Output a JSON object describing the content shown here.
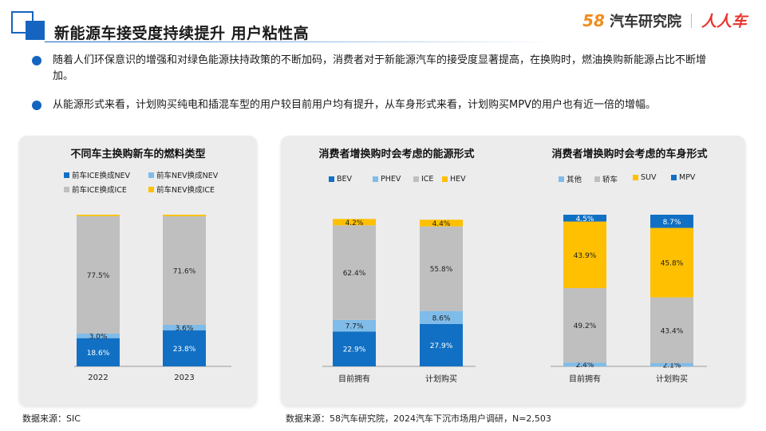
{
  "header": {
    "title": "新能源车接受度持续提升 用户粘性高",
    "brand_58": "58",
    "brand_58_text": "汽车研究院",
    "brand_rr": "人人车"
  },
  "bullets": [
    "随着人们环保意识的增强和对绿色能源扶持政策的不断加码，消费者对于新能源汽车的接受度显著提高，在换购时，燃油换购新能源占比不断增加。",
    "从能源形式来看，计划购买纯电和插混车型的用户较目前用户均有提升，从车身形式来看，计划购买MPV的用户也有近一倍的增幅。"
  ],
  "sources": {
    "left": "数据来源：SIC",
    "right": "数据来源：58汽车研究院，2024汽车下沉市场用户调研，N=2,503"
  },
  "colors": {
    "blue": "#1170c4",
    "lightblue": "#7fbce9",
    "gray": "#bfbfbf",
    "yellow": "#fec000"
  },
  "chart_data": [
    {
      "type": "bar",
      "stacked": true,
      "title": "不同车主换购新车的燃料类型",
      "categories": [
        "2022",
        "2023"
      ],
      "series": [
        {
          "name": "前车ICE换成NEV",
          "color": "#1170c4",
          "values": [
            18.6,
            23.8
          ],
          "labels": [
            "18.6%",
            "23.8%"
          ]
        },
        {
          "name": "前车NEV换成NEV",
          "color": "#7fbce9",
          "values": [
            3.0,
            3.6
          ],
          "labels": [
            "3.0%",
            "3.6%"
          ]
        },
        {
          "name": "前车ICE换成ICE",
          "color": "#bfbfbf",
          "values": [
            77.5,
            71.6
          ],
          "labels": [
            "77.5%",
            "71.6%"
          ]
        },
        {
          "name": "前车NEV换成ICE",
          "color": "#fec000",
          "values": [
            0.9,
            1.0
          ],
          "labels": [
            "",
            ""
          ]
        }
      ],
      "legend_order": [
        0,
        1,
        2,
        3
      ],
      "ylim": [
        0,
        100
      ]
    },
    {
      "type": "bar",
      "stacked": true,
      "title": "消费者增换购时会考虑的能源形式",
      "categories": [
        "目前拥有",
        "计划购买"
      ],
      "series": [
        {
          "name": "BEV",
          "color": "#1170c4",
          "values": [
            22.9,
            27.9
          ],
          "labels": [
            "22.9%",
            "27.9%"
          ]
        },
        {
          "name": "PHEV",
          "color": "#7fbce9",
          "values": [
            7.7,
            8.6
          ],
          "labels": [
            "7.7%",
            "8.6%"
          ]
        },
        {
          "name": "ICE",
          "color": "#bfbfbf",
          "values": [
            62.4,
            55.8
          ],
          "labels": [
            "62.4%",
            "55.8%"
          ]
        },
        {
          "name": "HEV",
          "color": "#fec000",
          "values": [
            4.2,
            4.4
          ],
          "labels": [
            "4.2%",
            "4.4%"
          ]
        }
      ],
      "legend_order": [
        0,
        1,
        2,
        3
      ],
      "ylim": [
        0,
        100
      ]
    },
    {
      "type": "bar",
      "stacked": true,
      "title": "消费者增换购时会考虑的车身形式",
      "categories": [
        "目前拥有",
        "计划购买"
      ],
      "series": [
        {
          "name": "其他",
          "color": "#7fbce9",
          "values": [
            2.4,
            2.1
          ],
          "labels": [
            "2.4%",
            "2.1%"
          ]
        },
        {
          "name": "轿车",
          "color": "#bfbfbf",
          "values": [
            49.2,
            43.4
          ],
          "labels": [
            "49.2%",
            "43.4%"
          ]
        },
        {
          "name": "SUV",
          "color": "#fec000",
          "values": [
            43.9,
            45.8
          ],
          "labels": [
            "43.9%",
            "45.8%"
          ]
        },
        {
          "name": "MPV",
          "color": "#1170c4",
          "values": [
            4.5,
            8.7
          ],
          "labels": [
            "4.5%",
            "8.7%"
          ]
        }
      ],
      "legend_order": [
        0,
        1,
        2,
        3
      ],
      "ylim": [
        0,
        100
      ]
    }
  ]
}
